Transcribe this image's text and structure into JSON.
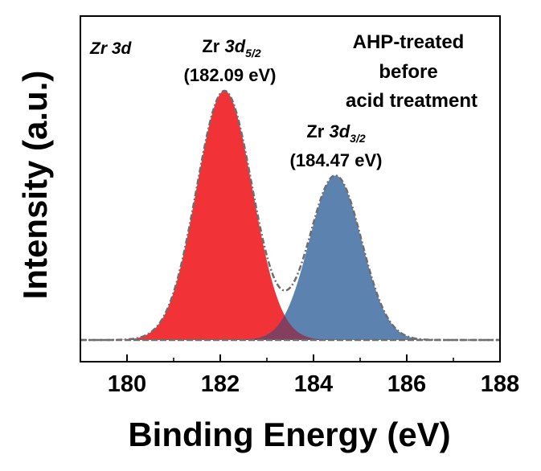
{
  "chart_data": {
    "type": "area",
    "xlabel": "Binding Energy (eV)",
    "ylabel": "Intensity (a.u.)",
    "xlim": [
      179.0,
      188.0
    ],
    "xticks": [
      180,
      182,
      184,
      186,
      188
    ],
    "xtick_labels": [
      "180",
      "182",
      "184",
      "186",
      "188"
    ],
    "yticks_shown": false,
    "grid": false,
    "baseline_y": 0,
    "ylim": [
      -0.08,
      1.0
    ],
    "series": [
      {
        "peak_eV": 182.09,
        "height": 1.0,
        "sigma_eV": 0.6,
        "fill": "#f0282d",
        "opacity": 0.95
      },
      {
        "peak_eV": 184.47,
        "height": 0.66,
        "sigma_eV": 0.56,
        "fill": "#4a76a6",
        "opacity": 0.9
      }
    ],
    "envelope": {
      "style": "dash-dot",
      "color": "#6e6e6e"
    },
    "baseline": {
      "style": "dashed",
      "color": "#6e6e6e"
    },
    "annotations": {
      "element": {
        "prefix": "Zr ",
        "orbital": "3d"
      },
      "peak1": {
        "prefix": "Zr ",
        "orbital": "3d",
        "sub": "5/2",
        "value": "(182.09 eV)"
      },
      "peak2": {
        "prefix": "Zr ",
        "orbital": "3d",
        "sub": "3/2",
        "value": "(184.47 eV)"
      },
      "sample": [
        "AHP-treated",
        "before",
        "acid treatment"
      ]
    }
  }
}
